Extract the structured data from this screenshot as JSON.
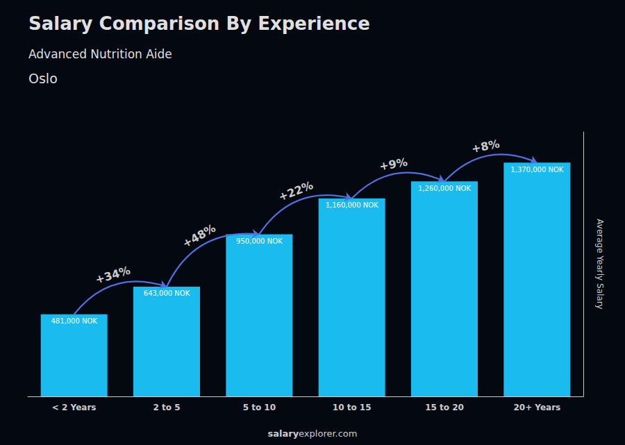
{
  "chart_data": {
    "type": "bar",
    "title": "Salary Comparison By Experience",
    "subtitle": "Advanced Nutrition Aide",
    "city": "Oslo",
    "ylabel": "Average Yearly Salary",
    "watermark": "salaryexplorer.com",
    "watermark_bold": "salary",
    "categories": [
      "< 2 Years",
      "2 to 5",
      "5 to 10",
      "10 to 15",
      "15 to 20",
      "20+ Years"
    ],
    "values": [
      481000,
      643000,
      950000,
      1160000,
      1260000,
      1370000
    ],
    "value_labels": [
      "481,000 NOK",
      "643,000 NOK",
      "950,000 NOK",
      "1,160,000 NOK",
      "1,260,000 NOK",
      "1,370,000 NOK"
    ],
    "annotations": [
      "+34%",
      "+48%",
      "+22%",
      "+9%",
      "+8%"
    ],
    "color": "#1ABCF0",
    "ylim": [
      0,
      1550000
    ],
    "yticks": [],
    "grid": false,
    "data_labels": true,
    "tick_labels": "x"
  }
}
